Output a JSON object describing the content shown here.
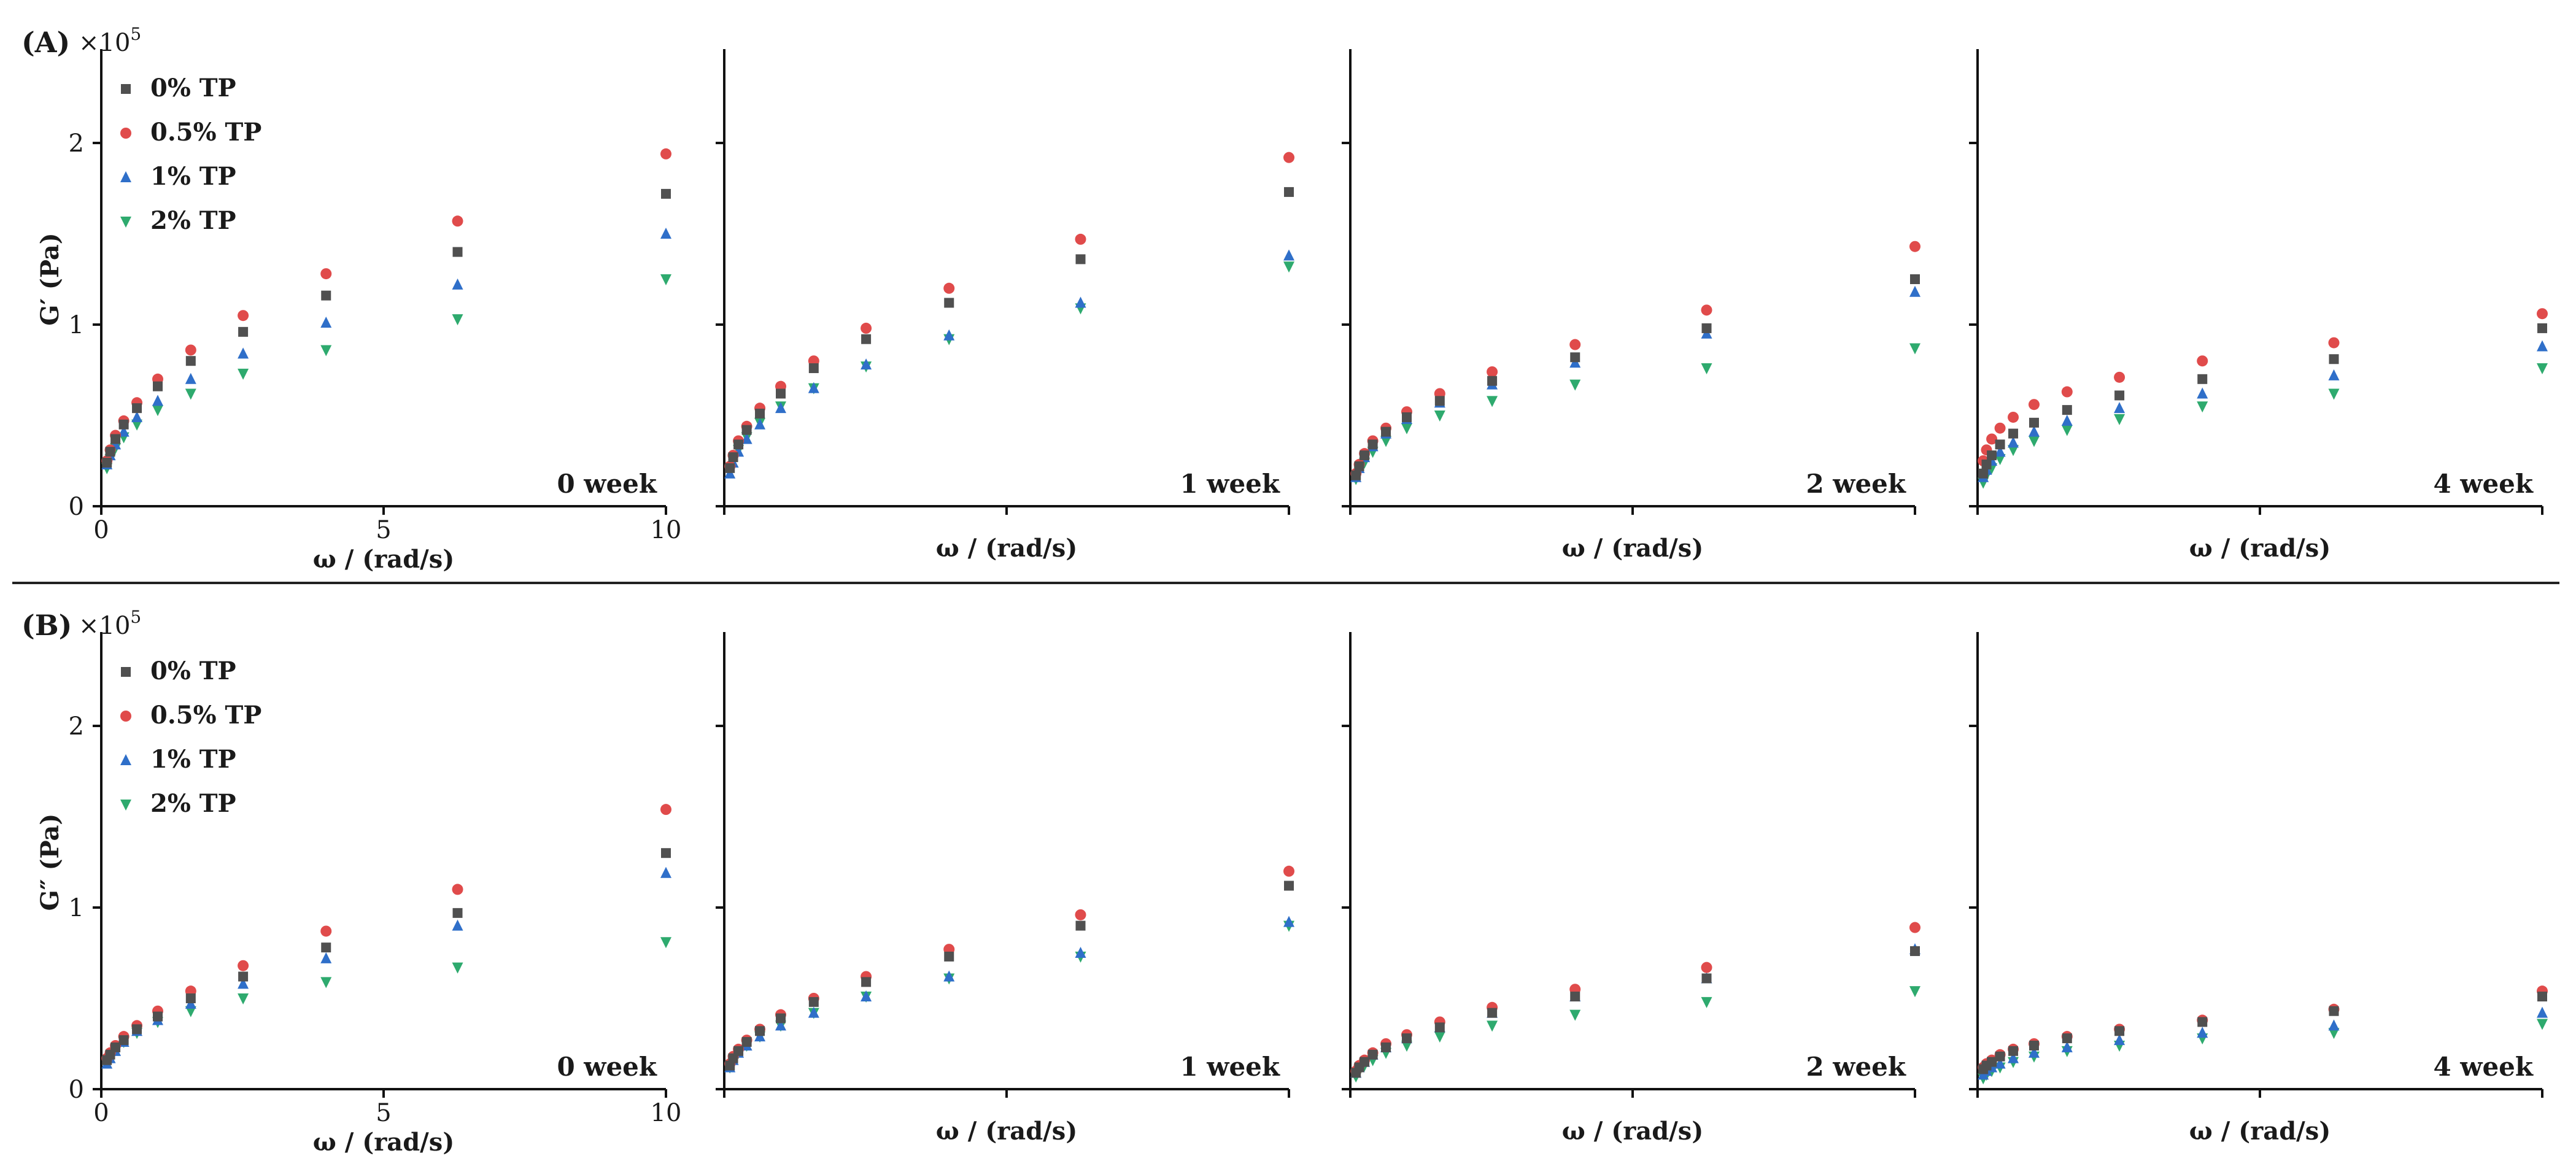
{
  "legend": [
    {
      "label": "0% TP",
      "color": "#505050",
      "marker": "square"
    },
    {
      "label": "0.5% TP",
      "color": "#e04b4b",
      "marker": "circle"
    },
    {
      "label": "1% TP",
      "color": "#2f6fc9",
      "marker": "triangle-up"
    },
    {
      "label": "2% TP",
      "color": "#2eaa6e",
      "marker": "triangle-down"
    }
  ],
  "chart_data": [
    {
      "type": "scatter",
      "panel": "(A)",
      "ylabel": "G′ (Pa)",
      "multiplier": "×10",
      "multiplier_exp": "5",
      "xlabel": "ω / (rad/s)",
      "xlim": [
        0,
        10
      ],
      "ylim": [
        0,
        2.5
      ],
      "yticks": [
        "0",
        "1",
        "2"
      ],
      "xticks": [
        "0",
        "5",
        "10"
      ],
      "x": [
        0.1,
        0.158,
        0.251,
        0.398,
        0.631,
        1.0,
        1.585,
        2.512,
        3.981,
        6.31,
        10.0
      ],
      "subplots": [
        {
          "label": "0 week",
          "series": [
            {
              "name": "0% TP",
              "values": [
                0.24,
                0.3,
                0.37,
                0.45,
                0.54,
                0.66,
                0.8,
                0.96,
                1.16,
                1.4,
                1.72
              ]
            },
            {
              "name": "0.5% TP",
              "values": [
                0.25,
                0.31,
                0.39,
                0.47,
                0.57,
                0.7,
                0.86,
                1.05,
                1.28,
                1.57,
                1.94
              ]
            },
            {
              "name": "1% TP",
              "values": [
                0.23,
                0.28,
                0.34,
                0.41,
                0.49,
                0.58,
                0.7,
                0.84,
                1.01,
                1.22,
                1.5
              ]
            },
            {
              "name": "2% TP",
              "values": [
                0.21,
                0.26,
                0.32,
                0.38,
                0.45,
                0.53,
                0.62,
                0.73,
                0.86,
                1.03,
                1.25
              ]
            }
          ]
        },
        {
          "label": "1 week",
          "series": [
            {
              "name": "0% TP",
              "values": [
                0.21,
                0.27,
                0.34,
                0.42,
                0.51,
                0.62,
                0.76,
                0.92,
                1.12,
                1.36,
                1.73
              ]
            },
            {
              "name": "0.5% TP",
              "values": [
                0.22,
                0.28,
                0.36,
                0.44,
                0.54,
                0.66,
                0.8,
                0.98,
                1.2,
                1.47,
                1.92
              ]
            },
            {
              "name": "1% TP",
              "values": [
                0.18,
                0.24,
                0.3,
                0.37,
                0.45,
                0.54,
                0.65,
                0.78,
                0.94,
                1.12,
                1.38
              ]
            },
            {
              "name": "2% TP",
              "values": [
                0.19,
                0.25,
                0.31,
                0.38,
                0.46,
                0.55,
                0.65,
                0.77,
                0.92,
                1.09,
                1.32
              ]
            }
          ]
        },
        {
          "label": "2 week",
          "series": [
            {
              "name": "0% TP",
              "values": [
                0.17,
                0.22,
                0.28,
                0.34,
                0.41,
                0.49,
                0.58,
                0.69,
                0.82,
                0.98,
                1.25
              ]
            },
            {
              "name": "0.5% TP",
              "values": [
                0.18,
                0.23,
                0.29,
                0.36,
                0.43,
                0.52,
                0.62,
                0.74,
                0.89,
                1.08,
                1.43
              ]
            },
            {
              "name": "1% TP",
              "values": [
                0.16,
                0.21,
                0.27,
                0.33,
                0.4,
                0.48,
                0.57,
                0.67,
                0.79,
                0.95,
                1.18
              ]
            },
            {
              "name": "2% TP",
              "values": [
                0.15,
                0.19,
                0.24,
                0.3,
                0.36,
                0.43,
                0.5,
                0.58,
                0.67,
                0.76,
                0.87
              ]
            }
          ]
        },
        {
          "label": "4 week",
          "series": [
            {
              "name": "0% TP",
              "values": [
                0.18,
                0.23,
                0.28,
                0.34,
                0.4,
                0.46,
                0.53,
                0.61,
                0.7,
                0.81,
                0.98
              ]
            },
            {
              "name": "0.5% TP",
              "values": [
                0.25,
                0.31,
                0.37,
                0.43,
                0.49,
                0.56,
                0.63,
                0.71,
                0.8,
                0.9,
                1.06
              ]
            },
            {
              "name": "1% TP",
              "values": [
                0.16,
                0.2,
                0.25,
                0.3,
                0.35,
                0.41,
                0.47,
                0.54,
                0.62,
                0.72,
                0.88
              ]
            },
            {
              "name": "2% TP",
              "values": [
                0.13,
                0.17,
                0.21,
                0.26,
                0.31,
                0.36,
                0.42,
                0.48,
                0.55,
                0.62,
                0.76
              ]
            }
          ]
        }
      ]
    },
    {
      "type": "scatter",
      "panel": "(B)",
      "ylabel": "G″ (Pa)",
      "multiplier": "×10",
      "multiplier_exp": "5",
      "xlabel": "ω / (rad/s)",
      "xlim": [
        0,
        10
      ],
      "ylim": [
        0,
        2.5
      ],
      "yticks": [
        "0",
        "1",
        "2"
      ],
      "xticks": [
        "0",
        "5",
        "10"
      ],
      "x": [
        0.1,
        0.158,
        0.251,
        0.398,
        0.631,
        1.0,
        1.585,
        2.512,
        3.981,
        6.31,
        10.0
      ],
      "subplots": [
        {
          "label": "0 week",
          "series": [
            {
              "name": "0% TP",
              "values": [
                0.16,
                0.19,
                0.23,
                0.27,
                0.33,
                0.4,
                0.5,
                0.62,
                0.78,
                0.97,
                1.3
              ]
            },
            {
              "name": "0.5% TP",
              "values": [
                0.17,
                0.2,
                0.24,
                0.29,
                0.35,
                0.43,
                0.54,
                0.68,
                0.87,
                1.1,
                1.54
              ]
            },
            {
              "name": "1% TP",
              "values": [
                0.14,
                0.17,
                0.21,
                0.26,
                0.32,
                0.38,
                0.47,
                0.58,
                0.72,
                0.9,
                1.19
              ]
            },
            {
              "name": "2% TP",
              "values": [
                0.15,
                0.18,
                0.22,
                0.26,
                0.31,
                0.37,
                0.43,
                0.5,
                0.59,
                0.67,
                0.81
              ]
            }
          ]
        },
        {
          "label": "1 week",
          "series": [
            {
              "name": "0% TP",
              "values": [
                0.13,
                0.17,
                0.21,
                0.26,
                0.32,
                0.39,
                0.48,
                0.59,
                0.73,
                0.9,
                1.12
              ]
            },
            {
              "name": "0.5% TP",
              "values": [
                0.14,
                0.18,
                0.22,
                0.27,
                0.33,
                0.41,
                0.5,
                0.62,
                0.77,
                0.96,
                1.2
              ]
            },
            {
              "name": "1% TP",
              "values": [
                0.12,
                0.16,
                0.2,
                0.24,
                0.29,
                0.35,
                0.42,
                0.51,
                0.62,
                0.75,
                0.92
              ]
            },
            {
              "name": "2% TP",
              "values": [
                0.12,
                0.16,
                0.2,
                0.24,
                0.29,
                0.35,
                0.42,
                0.51,
                0.61,
                0.73,
                0.9
              ]
            }
          ]
        },
        {
          "label": "2 week",
          "series": [
            {
              "name": "0% TP",
              "values": [
                0.09,
                0.12,
                0.15,
                0.19,
                0.23,
                0.28,
                0.34,
                0.42,
                0.51,
                0.61,
                0.76
              ]
            },
            {
              "name": "0.5% TP",
              "values": [
                0.1,
                0.13,
                0.16,
                0.2,
                0.25,
                0.3,
                0.37,
                0.45,
                0.55,
                0.67,
                0.89
              ]
            },
            {
              "name": "1% TP",
              "values": [
                0.09,
                0.12,
                0.15,
                0.19,
                0.23,
                0.28,
                0.34,
                0.42,
                0.51,
                0.61,
                0.77
              ]
            },
            {
              "name": "2% TP",
              "values": [
                0.07,
                0.1,
                0.13,
                0.16,
                0.2,
                0.24,
                0.29,
                0.35,
                0.41,
                0.48,
                0.54
              ]
            }
          ]
        },
        {
          "label": "4 week",
          "series": [
            {
              "name": "0% TP",
              "values": [
                0.11,
                0.13,
                0.15,
                0.18,
                0.21,
                0.24,
                0.28,
                0.32,
                0.37,
                0.43,
                0.51
              ]
            },
            {
              "name": "0.5% TP",
              "values": [
                0.12,
                0.14,
                0.16,
                0.19,
                0.22,
                0.25,
                0.29,
                0.33,
                0.38,
                0.44,
                0.54
              ]
            },
            {
              "name": "1% TP",
              "values": [
                0.08,
                0.1,
                0.12,
                0.14,
                0.17,
                0.2,
                0.23,
                0.27,
                0.31,
                0.35,
                0.42
              ]
            },
            {
              "name": "2% TP",
              "values": [
                0.06,
                0.08,
                0.1,
                0.12,
                0.15,
                0.18,
                0.21,
                0.24,
                0.28,
                0.31,
                0.36
              ]
            }
          ]
        }
      ]
    }
  ]
}
